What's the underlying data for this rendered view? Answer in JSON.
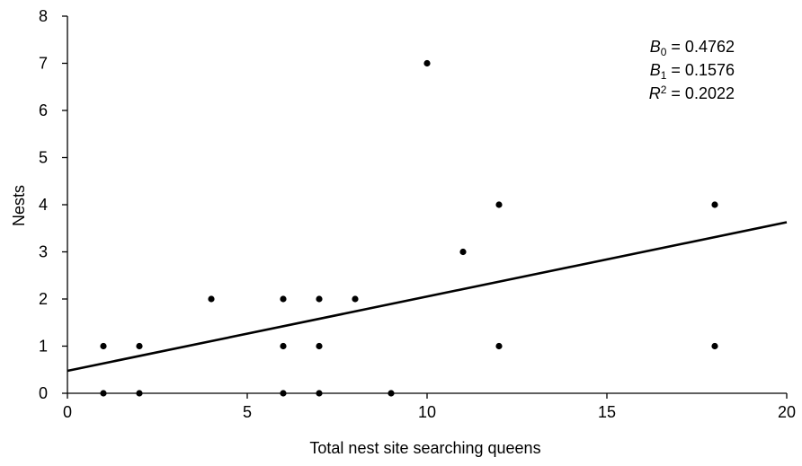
{
  "chart_data": {
    "type": "scatter",
    "xlabel": "Total nest site searching queens",
    "ylabel": "Nests",
    "xlim": [
      0,
      20
    ],
    "ylim": [
      0,
      8
    ],
    "x_ticks": [
      "0",
      "5",
      "10",
      "15",
      "20"
    ],
    "y_ticks": [
      "0",
      "1",
      "2",
      "3",
      "4",
      "5",
      "6",
      "7",
      "8"
    ],
    "grid": false,
    "points": [
      {
        "x": 1,
        "y": 1
      },
      {
        "x": 1,
        "y": 0
      },
      {
        "x": 2,
        "y": 1
      },
      {
        "x": 2,
        "y": 0
      },
      {
        "x": 4,
        "y": 2
      },
      {
        "x": 6,
        "y": 2
      },
      {
        "x": 6,
        "y": 1
      },
      {
        "x": 6,
        "y": 0
      },
      {
        "x": 7,
        "y": 2
      },
      {
        "x": 7,
        "y": 1
      },
      {
        "x": 7,
        "y": 0
      },
      {
        "x": 8,
        "y": 2
      },
      {
        "x": 9,
        "y": 0
      },
      {
        "x": 10,
        "y": 7
      },
      {
        "x": 11,
        "y": 3
      },
      {
        "x": 12,
        "y": 4
      },
      {
        "x": 12,
        "y": 1
      },
      {
        "x": 18,
        "y": 4
      },
      {
        "x": 18,
        "y": 1
      }
    ],
    "trendline": {
      "intercept": 0.4762,
      "slope": 0.1576
    },
    "stats": {
      "b0_symbol": "B",
      "b0_sub": "0",
      "b0_text": " = 0.4762",
      "b1_symbol": "B",
      "b1_sub": "1",
      "b1_text": " = 0.1576",
      "r2_symbol": "R",
      "r2_sup": "2",
      "r2_text": " = 0.2022"
    },
    "colors": {
      "points": "#000000",
      "line": "#000000",
      "axes": "#000000"
    }
  }
}
